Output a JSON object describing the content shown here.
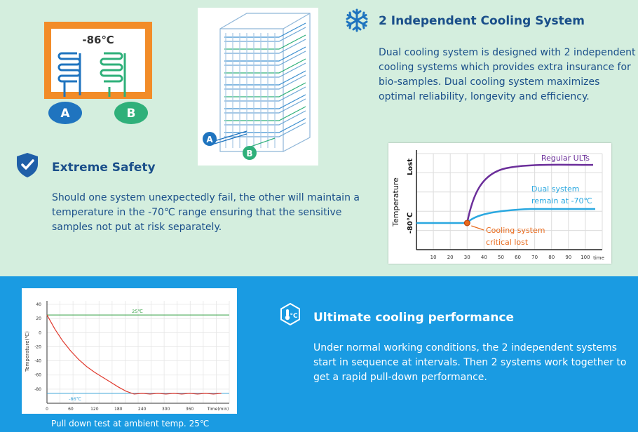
{
  "diagram_dual": {
    "temp_label": "-86℃",
    "label_a": "A",
    "label_b": "B",
    "color_a": "#1f74bf",
    "color_b": "#2fb07a",
    "frame_color": "#f28c28"
  },
  "diagram_coil": {
    "label_a": "A",
    "label_b": "B"
  },
  "cooling": {
    "title": "2 Independent Cooling System",
    "text": "Dual cooling system is designed with 2 independent cooling systems which provides extra insurance for bio-samples. Dual cooling system maximizes optimal reliability, longevity and efficiency.",
    "icon": "snowflake-icon"
  },
  "safety": {
    "title": "Extreme Safety",
    "text": "Should one system unexpectedly fail, the other will maintain a temperature in the -70℃ range ensuring that the sensitive samples not put at risk separately.",
    "icon": "shield-check-icon"
  },
  "performance": {
    "title": "Ultimate cooling performance",
    "text": "Under normal working conditions, the 2 independent systems start in sequence at intervals. Then 2 systems work together to get a rapid pull-down performance.",
    "icon": "thermometer-icon",
    "caption": "Pull down test at ambient temp. 25℃"
  },
  "chart_data": [
    {
      "type": "line",
      "ylabel": "Temperature",
      "y_tick_top": "Lost",
      "y_tick_bottom": "-80℃",
      "xlabel": "time",
      "x_ticks": [
        10,
        20,
        30,
        40,
        50,
        60,
        70,
        80,
        90,
        100
      ],
      "xlim": [
        0,
        110
      ],
      "series": [
        {
          "name": "Regular ULTs",
          "color": "#6b2e9a"
        },
        {
          "name": "Dual system remain at -70℃",
          "color": "#2aa8e0"
        }
      ],
      "annotations": [
        "Regular ULTs",
        "Dual system",
        "remain at -70℃",
        "Cooling system",
        "critical lost"
      ],
      "event_x": 30
    },
    {
      "type": "line",
      "ylabel": "Temperature(℃)",
      "xlabel": "Time(min)",
      "x_ticks": [
        0,
        60,
        120,
        180,
        240,
        300,
        360
      ],
      "y_ticks": [
        40,
        20,
        0,
        -20,
        -40,
        -60,
        -80
      ],
      "xlim": [
        0,
        460
      ],
      "ylim": [
        -100,
        45
      ],
      "reference_lines": [
        {
          "label": "25℃",
          "y": 25,
          "color": "#2e9e3e"
        },
        {
          "label": "-86℃",
          "y": -86,
          "color": "#3aa3d8"
        }
      ],
      "series": [
        {
          "color": "#e03a2e",
          "x": [
            0,
            20,
            40,
            60,
            80,
            100,
            120,
            140,
            160,
            180,
            200,
            220,
            240,
            260,
            280,
            300,
            320,
            340,
            360,
            380,
            400,
            420,
            440
          ],
          "y": [
            25,
            5,
            -12,
            -26,
            -38,
            -48,
            -56,
            -63,
            -70,
            -77,
            -83,
            -87,
            -86,
            -87,
            -86,
            -87,
            -86,
            -87,
            -86,
            -87,
            -86,
            -87,
            -86
          ]
        }
      ]
    }
  ]
}
